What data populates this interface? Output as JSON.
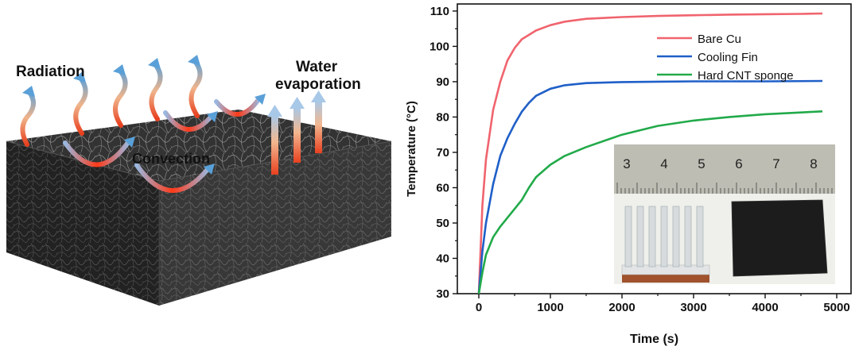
{
  "illustration": {
    "labels": {
      "radiation": "Radiation",
      "water_line1": "Water",
      "water_line2": "evaporation",
      "convection": "Convection"
    },
    "colors": {
      "sponge_top": "#3a3a3a",
      "sponge_side": "#262626",
      "arrow_hot": "#e8401e",
      "arrow_cool": "#5aa0d8"
    }
  },
  "inset_photo": {
    "ruler_numbers": [
      "3",
      "4",
      "5",
      "6",
      "7",
      "8"
    ],
    "colors": {
      "ruler": "#bdbdb3",
      "fin": "#d8dbde",
      "sponge": "#1c1c1c",
      "base": "#a0522d"
    }
  },
  "chart_data": {
    "type": "line",
    "title": "",
    "xlabel": "Time (s)",
    "ylabel": "Temperature (°C)",
    "xlim": [
      -300,
      5200
    ],
    "ylim": [
      30,
      112
    ],
    "xticks": [
      0,
      1000,
      2000,
      3000,
      4000,
      5000
    ],
    "yticks": [
      30,
      40,
      50,
      60,
      70,
      80,
      90,
      100,
      110
    ],
    "legend_position": "top-right",
    "grid": false,
    "series": [
      {
        "name": "Bare Cu",
        "color": "#f0646e",
        "x": [
          0,
          50,
          100,
          200,
          300,
          400,
          500,
          600,
          800,
          1000,
          1200,
          1500,
          2000,
          2500,
          3000,
          3500,
          4000,
          4500,
          4800
        ],
        "y": [
          30,
          55,
          68,
          82,
          90,
          96,
          99.5,
          102,
          104.5,
          106,
          107,
          107.8,
          108.3,
          108.6,
          108.8,
          109,
          109.1,
          109.2,
          109.3
        ]
      },
      {
        "name": "Cooling Fin",
        "color": "#1f5fc8",
        "x": [
          0,
          50,
          100,
          200,
          300,
          400,
          500,
          600,
          700,
          800,
          1000,
          1200,
          1500,
          2000,
          2500,
          3000,
          4000,
          4800
        ],
        "y": [
          30,
          42,
          50,
          61,
          69,
          74,
          78,
          81.5,
          84,
          86,
          88,
          89,
          89.6,
          89.9,
          90,
          90.1,
          90.1,
          90.2
        ]
      },
      {
        "name": "Hard CNT sponge",
        "color": "#22aa4a",
        "x": [
          0,
          50,
          100,
          200,
          300,
          400,
          500,
          600,
          700,
          800,
          1000,
          1200,
          1500,
          2000,
          2500,
          3000,
          3500,
          4000,
          4500,
          4800
        ],
        "y": [
          30,
          36,
          41,
          46,
          49,
          51.5,
          54,
          56.5,
          60,
          63,
          66.5,
          69,
          71.5,
          75,
          77.5,
          79,
          80,
          80.8,
          81.3,
          81.6
        ]
      }
    ]
  }
}
